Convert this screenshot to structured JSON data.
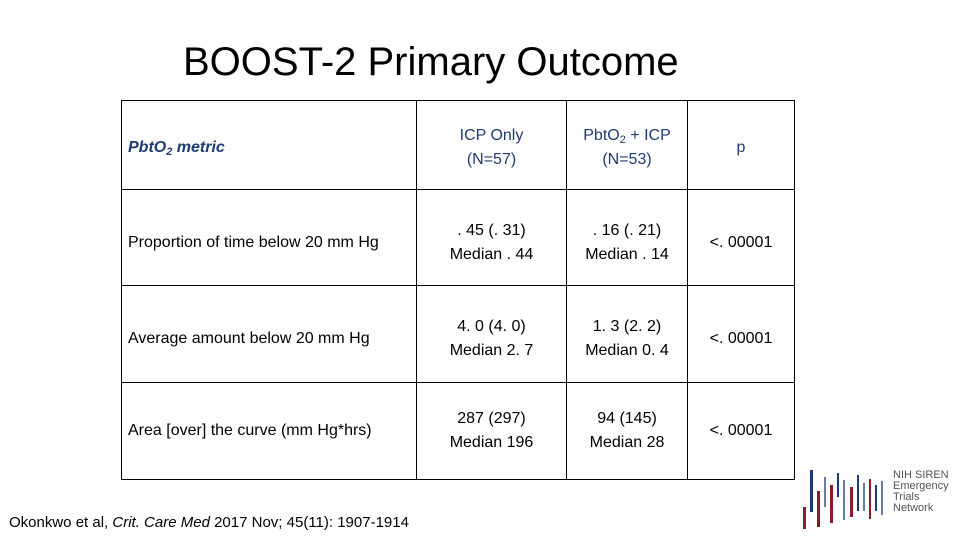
{
  "slide": {
    "title": "BOOST-2 Primary Outcome"
  },
  "table": {
    "header": {
      "metric_label": "Pbt",
      "metric_o": "O",
      "metric_sub": "2",
      "metric_rest": " metric",
      "col1_line1": "ICP Only",
      "col1_line2": "(N=57)",
      "col2_line1_a": "Pbt",
      "col2_line1_o": "O",
      "col2_line1_sub": "2",
      "col2_line1_b": " + ICP",
      "col2_line2": "(N=53)",
      "col3": "p"
    },
    "rows": [
      {
        "label": "Proportion of time below 20 mm Hg",
        "icp_line1": ". 45 (. 31)",
        "icp_line2": "Median . 44",
        "pbt_line1": ". 16 (. 21)",
        "pbt_line2": "Median . 14",
        "p": "<. 00001"
      },
      {
        "label": "Average amount below 20 mm Hg",
        "icp_line1": "4. 0 (4. 0)",
        "icp_line2": "Median 2. 7",
        "pbt_line1": "1. 3 (2. 2)",
        "pbt_line2": "Median 0. 4",
        "p": "<. 00001"
      },
      {
        "label": "Area [over] the curve (mm Hg*hrs)",
        "icp_line1": "287 (297)",
        "icp_line2": "Median 196",
        "pbt_line1": "94 (145)",
        "pbt_line2": "Median 28",
        "p": "<. 00001"
      }
    ]
  },
  "citation": {
    "prefix": "Okonkwo et al, ",
    "journal": "Crit. Care Med",
    "suffix": " 2017 Nov; 45(11): 1907-1914"
  },
  "logo": {
    "line1": "NIH SIREN",
    "line2": "Emergency",
    "line3": "Trials",
    "line4": "Network",
    "bar_colors": [
      "#1f3b73",
      "#8a1c2b",
      "#6a7aa6"
    ]
  }
}
